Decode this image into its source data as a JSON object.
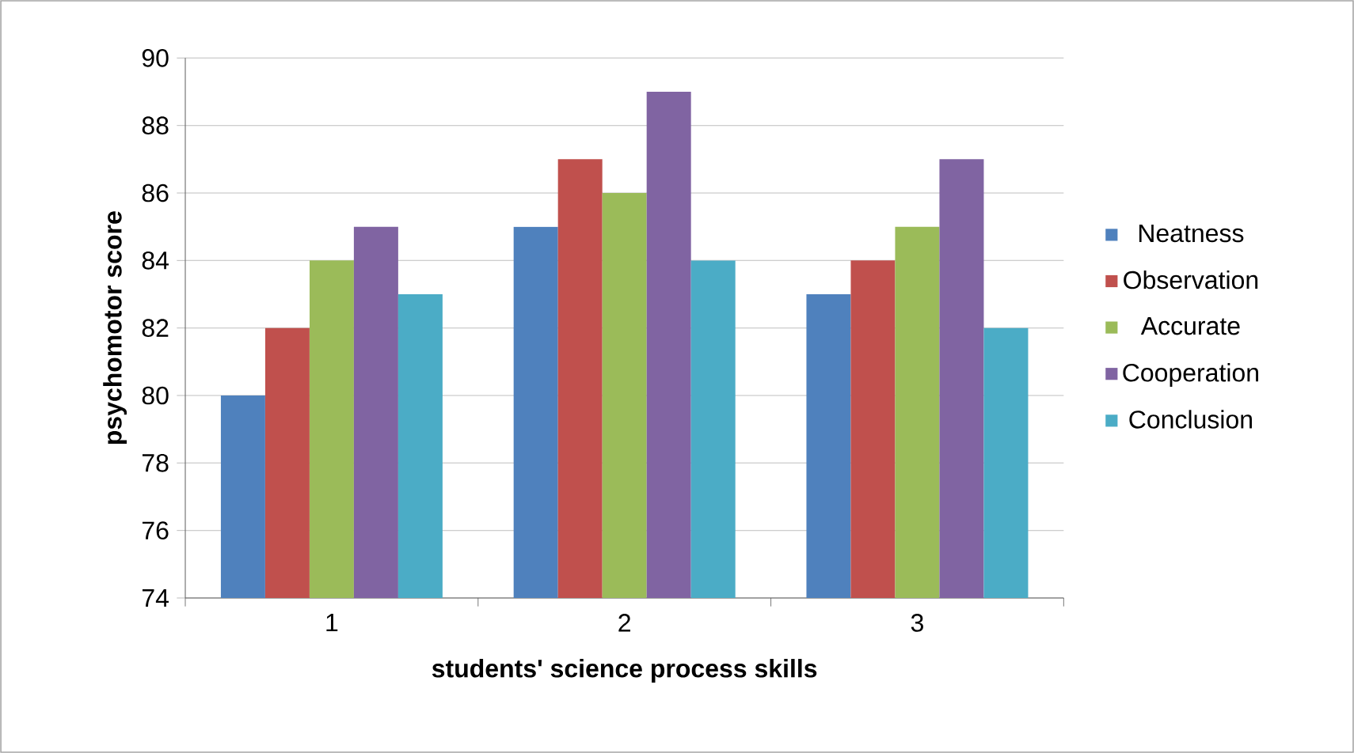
{
  "chart_data": {
    "type": "bar",
    "xlabel": "students' science process skills",
    "ylabel": "psychomotor score",
    "categories": [
      "1",
      "2",
      "3"
    ],
    "series": [
      {
        "name": "Neatness",
        "color": "#4f81bd",
        "values": [
          80,
          85,
          83
        ]
      },
      {
        "name": "Observation",
        "color": "#c0504d",
        "values": [
          82,
          87,
          84
        ]
      },
      {
        "name": "Accurate",
        "color": "#9bbb59",
        "values": [
          84,
          86,
          85
        ]
      },
      {
        "name": "Cooperation",
        "color": "#8064a2",
        "values": [
          85,
          89,
          87
        ]
      },
      {
        "name": "Conclusion",
        "color": "#4bacc6",
        "values": [
          83,
          84,
          82
        ]
      }
    ],
    "ylim": [
      74,
      90
    ],
    "yticks": [
      74,
      76,
      78,
      80,
      82,
      84,
      86,
      88,
      90
    ],
    "grid": "y",
    "legend": "right"
  }
}
